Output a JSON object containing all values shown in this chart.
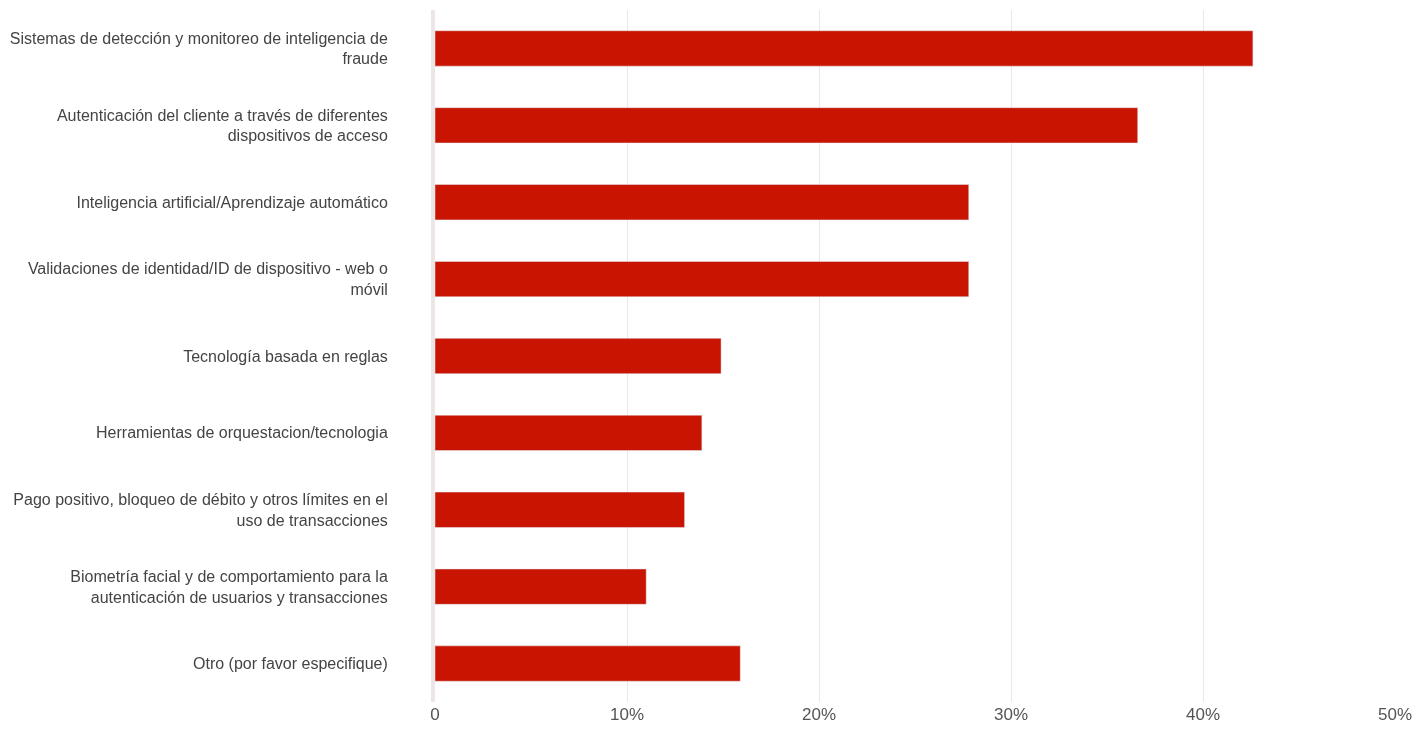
{
  "chart_data": {
    "type": "bar",
    "orientation": "horizontal",
    "categories": [
      "Sistemas de detección y monitoreo de inteligencia de fraude",
      "Autenticación del cliente a través de diferentes dispositivos de acceso",
      "Inteligencia artificial/Aprendizaje automático",
      "Validaciones de identidad/ID de dispositivo - web o móvil",
      "Tecnología basada en reglas",
      "Herramientas de orquestacion/tecnologia",
      "Pago positivo, bloqueo de débito y otros límites en el uso de transacciones",
      "Biometría facial y de comportamiento para la autenticación de usuarios y transacciones",
      "Otro (por favor especifique)"
    ],
    "values": [
      42.6,
      36.6,
      27.8,
      27.8,
      14.9,
      13.9,
      13.0,
      11.0,
      15.9
    ],
    "color": "#c81400",
    "xlim": [
      0,
      50
    ],
    "xticks": [
      0,
      {
        "value": 10,
        "label": "10%"
      },
      {
        "value": 20,
        "label": "20%"
      },
      {
        "value": 30,
        "label": "30%"
      },
      {
        "value": 40,
        "label": "40%"
      },
      {
        "value": 50,
        "label": "50%"
      }
    ],
    "grid": "x",
    "legend": false
  }
}
